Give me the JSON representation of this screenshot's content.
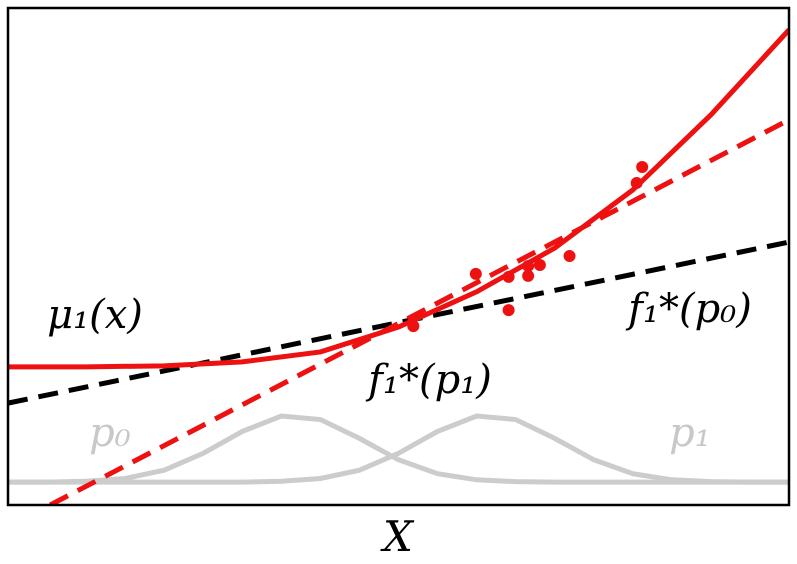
{
  "chart_data": {
    "type": "line",
    "xlabel": "X",
    "xlim": [
      0,
      100
    ],
    "ylim": [
      0,
      100
    ],
    "series": [
      {
        "color": "#cccccc",
        "dash": false,
        "x": [
          0,
          5,
          10,
          15,
          20,
          25,
          30,
          35,
          40,
          45,
          50,
          55,
          60,
          65,
          70,
          75,
          80,
          85,
          90,
          95,
          100
        ],
        "values": [
          4.6,
          4.6,
          4.77,
          5.34,
          7.0,
          10.4,
          14.8,
          17.9,
          17.2,
          13.4,
          9.1,
          6.3,
          5.07,
          4.7,
          4.6,
          4.6,
          4.6,
          4.6,
          4.6,
          4.6,
          4.6
        ]
      },
      {
        "color": "#cccccc",
        "dash": false,
        "x": [
          0,
          5,
          10,
          15,
          20,
          25,
          30,
          35,
          40,
          45,
          50,
          55,
          60,
          65,
          70,
          75,
          80,
          85,
          90,
          95,
          100
        ],
        "values": [
          4.6,
          4.6,
          4.6,
          4.6,
          4.6,
          4.6,
          4.6,
          4.77,
          5.34,
          7.0,
          10.4,
          14.8,
          17.9,
          17.2,
          13.4,
          9.1,
          6.3,
          5.07,
          4.7,
          4.6,
          4.6
        ]
      },
      {
        "color": "#000000",
        "dash": true,
        "x": [
          0,
          100
        ],
        "values": [
          20.5,
          52.9
        ]
      },
      {
        "color": "#ee1111",
        "dash": true,
        "x": [
          5.4,
          100
        ],
        "values": [
          0,
          77.5
        ]
      },
      {
        "color": "#ee1111",
        "dash": false,
        "x": [
          0,
          10,
          20,
          30,
          40,
          50,
          60,
          70,
          80,
          90,
          100
        ],
        "values": [
          27.8,
          27.8,
          28.0,
          28.8,
          30.8,
          35.8,
          42.9,
          51.7,
          63.4,
          78.5,
          95.6
        ]
      }
    ],
    "points": {
      "color": "#ee1111",
      "x": [
        51.9,
        59.9,
        64.1,
        64.1,
        66.6,
        66.6,
        68.1,
        71.9,
        80.5,
        81.2
      ],
      "values": [
        36.0,
        46.5,
        39.2,
        45.9,
        48.1,
        46.1,
        48.3,
        50.1,
        64.8,
        68.0
      ]
    },
    "annotations": [
      "μ₁(x)",
      "f₁*(p₀)",
      "f₁*(p₁)",
      "p₀",
      "p₁"
    ]
  }
}
